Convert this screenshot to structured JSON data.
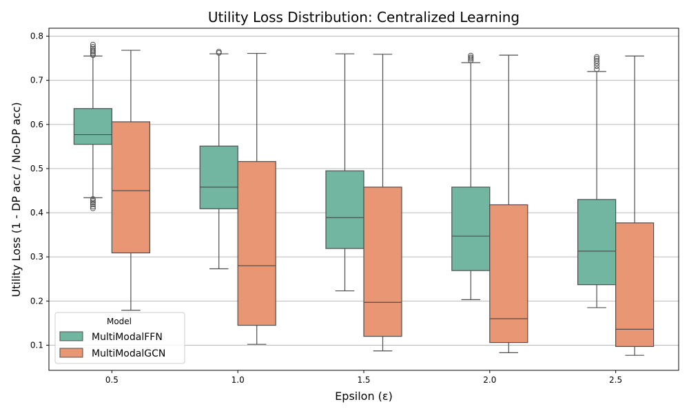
{
  "chart_data": {
    "type": "box",
    "title": "Utility Loss Distribution: Centralized Learning",
    "xlabel": "Epsilon (ε)",
    "ylabel": "Utility Loss (1 - DP acc / No-DP acc)",
    "categories": [
      "0.5",
      "1.0",
      "1.5",
      "2.0",
      "2.5"
    ],
    "ylim": [
      0.043,
      0.818
    ],
    "yticks": [
      0.1,
      0.2,
      0.3,
      0.4,
      0.5,
      0.6,
      0.7,
      0.8
    ],
    "ytick_labels": [
      "0.1",
      "0.2",
      "0.3",
      "0.4",
      "0.5",
      "0.6",
      "0.7",
      "0.8"
    ],
    "grid": "y",
    "legend": {
      "title": "Model",
      "position": "lower-left"
    },
    "series": [
      {
        "name": "MultiModalFFN",
        "color": "#72b6a1",
        "boxes": [
          {
            "whisker_low": 0.434,
            "q1": 0.555,
            "median": 0.577,
            "q3": 0.636,
            "whisker_high": 0.755,
            "outliers": [
              0.757,
              0.761,
              0.765,
              0.768,
              0.772,
              0.776,
              0.781,
              0.41,
              0.414,
              0.419,
              0.423,
              0.427,
              0.431
            ]
          },
          {
            "whisker_low": 0.273,
            "q1": 0.409,
            "median": 0.458,
            "q3": 0.551,
            "whisker_high": 0.76,
            "outliers": [
              0.762,
              0.765
            ]
          },
          {
            "whisker_low": 0.223,
            "q1": 0.319,
            "median": 0.389,
            "q3": 0.495,
            "whisker_high": 0.76,
            "outliers": []
          },
          {
            "whisker_low": 0.203,
            "q1": 0.269,
            "median": 0.347,
            "q3": 0.458,
            "whisker_high": 0.74,
            "outliers": [
              0.745,
              0.749,
              0.752,
              0.756
            ]
          },
          {
            "whisker_low": 0.185,
            "q1": 0.237,
            "median": 0.313,
            "q3": 0.43,
            "whisker_high": 0.72,
            "outliers": [
              0.725,
              0.732,
              0.738,
              0.744,
              0.749,
              0.753
            ]
          }
        ]
      },
      {
        "name": "MultiModalGCN",
        "color": "#e99675",
        "boxes": [
          {
            "whisker_low": 0.179,
            "q1": 0.309,
            "median": 0.45,
            "q3": 0.606,
            "whisker_high": 0.768,
            "outliers": []
          },
          {
            "whisker_low": 0.102,
            "q1": 0.145,
            "median": 0.28,
            "q3": 0.516,
            "whisker_high": 0.761,
            "outliers": []
          },
          {
            "whisker_low": 0.087,
            "q1": 0.12,
            "median": 0.197,
            "q3": 0.458,
            "whisker_high": 0.759,
            "outliers": []
          },
          {
            "whisker_low": 0.083,
            "q1": 0.106,
            "median": 0.16,
            "q3": 0.418,
            "whisker_high": 0.757,
            "outliers": []
          },
          {
            "whisker_low": 0.077,
            "q1": 0.097,
            "median": 0.136,
            "q3": 0.377,
            "whisker_high": 0.755,
            "outliers": []
          }
        ]
      }
    ]
  }
}
